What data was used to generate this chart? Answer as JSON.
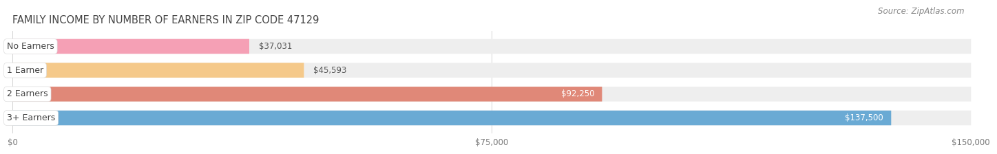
{
  "title": "FAMILY INCOME BY NUMBER OF EARNERS IN ZIP CODE 47129",
  "source": "Source: ZipAtlas.com",
  "categories": [
    "No Earners",
    "1 Earner",
    "2 Earners",
    "3+ Earners"
  ],
  "values": [
    37031,
    45593,
    92250,
    137500
  ],
  "bar_colors": [
    "#f5a0b5",
    "#f5c98a",
    "#e08878",
    "#6aaad4"
  ],
  "bar_bg_color": "#eeeeee",
  "xlim": [
    0,
    150000
  ],
  "xticks": [
    0,
    75000,
    150000
  ],
  "xtick_labels": [
    "$0",
    "$75,000",
    "$150,000"
  ],
  "background_color": "#ffffff",
  "value_labels": [
    "$37,031",
    "$45,593",
    "$92,250",
    "$137,500"
  ],
  "title_fontsize": 10.5,
  "source_fontsize": 8.5,
  "label_fontsize": 9,
  "value_fontsize": 8.5
}
